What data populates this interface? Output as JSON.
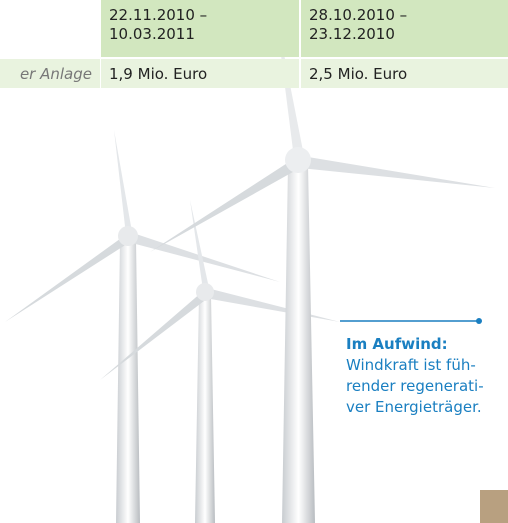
{
  "table": {
    "header": [
      [
        "22.11.2010 –",
        "10.03.2011"
      ],
      [
        "28.10.2010 –",
        "23.12.2010"
      ]
    ],
    "rows": [
      {
        "label": "er Anlage",
        "cells": [
          "1,9 Mio. Euro",
          "2,5 Mio. Euro"
        ]
      }
    ]
  },
  "caption": {
    "title": "Im Aufwind:",
    "lines": [
      "Windkraft ist füh-",
      "render regenerati-",
      "ver Energieträger."
    ]
  }
}
